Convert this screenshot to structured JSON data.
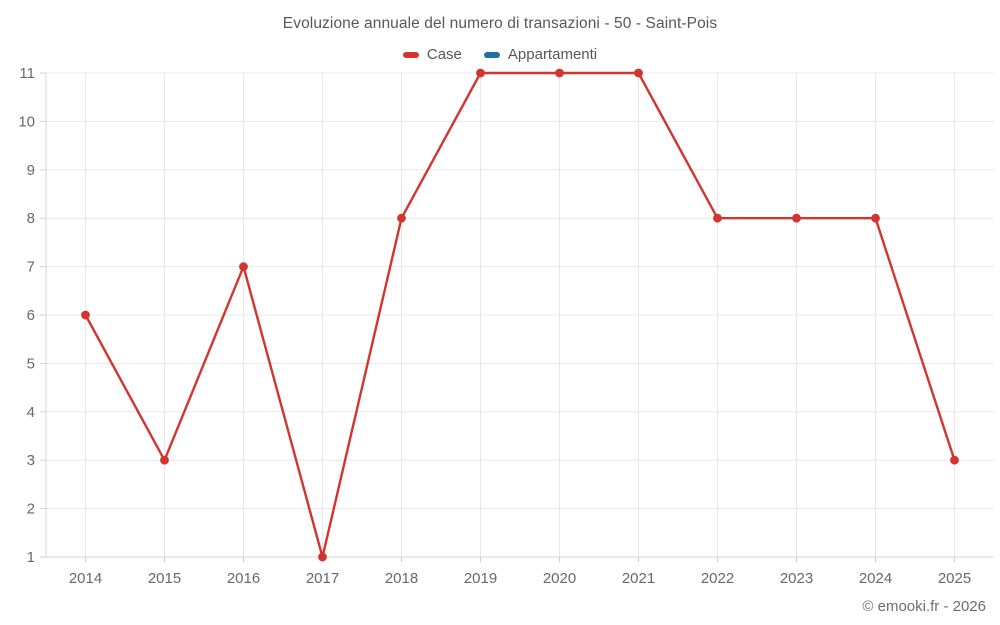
{
  "header": {
    "title": "Evoluzione annuale del numero di transazioni - 50 - Saint-Pois"
  },
  "footer": {
    "copyright": "© emooki.fr - 2026"
  },
  "colors": {
    "case_red": "#d4342e",
    "appartamenti_blue": "#1c73a1",
    "grid": "#e8e8e8",
    "axis": "#d6d6d6",
    "tick": "#cfcfcf",
    "axis_text": "#66696c"
  },
  "chart_data": {
    "type": "line",
    "title": "Evoluzione annuale del numero di transazioni - 50 - Saint-Pois",
    "categories": [
      "2014",
      "2015",
      "2016",
      "2017",
      "2018",
      "2019",
      "2020",
      "2021",
      "2022",
      "2023",
      "2024",
      "2025"
    ],
    "series": [
      {
        "name": "Case",
        "color": "#d4342e",
        "values": [
          6,
          3,
          7,
          1,
          8,
          11,
          11,
          11,
          8,
          8,
          8,
          3
        ]
      },
      {
        "name": "Appartamenti",
        "color": "#1c73a1",
        "values": []
      }
    ],
    "xlabel": "",
    "ylabel": "",
    "ylim": [
      1,
      11
    ],
    "y_ticks": [
      1,
      2,
      3,
      4,
      5,
      6,
      7,
      8,
      9,
      10,
      11
    ],
    "grid": true,
    "legend_position": "top",
    "marker": "circle"
  }
}
